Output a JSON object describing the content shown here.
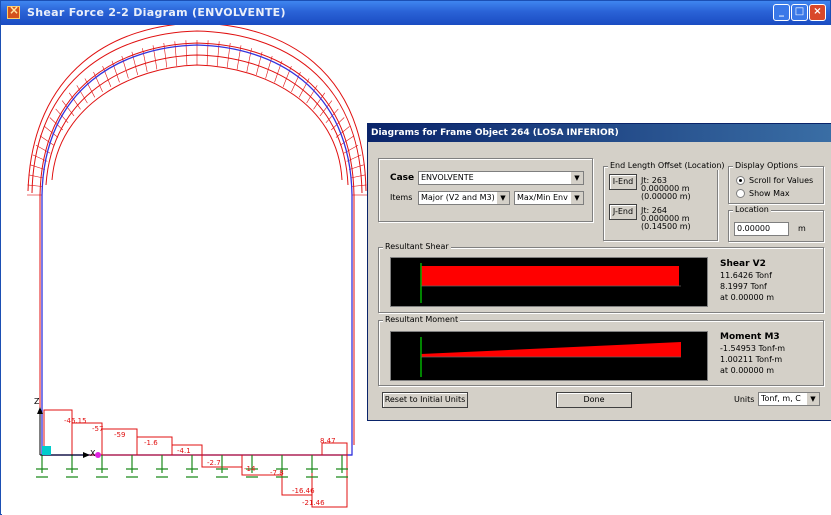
{
  "window": {
    "title": "Shear Force 2-2 Diagram   (ENVOLVENTE)",
    "buttons": [
      "_",
      "□",
      "×"
    ]
  },
  "diagram": {
    "axis_labels": [
      "Z",
      "X"
    ],
    "tick_labels": [
      "-46.15",
      "-57",
      "-59",
      "-1.6",
      "-4.1",
      "-2.7",
      "8.47",
      "-14",
      "-7.8",
      "-16.46",
      "-21.46"
    ]
  },
  "dialog": {
    "title": "Diagrams for Frame Object 264  (LOSA INFERIOR)",
    "case_label": "Case",
    "case_value": "ENVOLVENTE",
    "items_label": "Items",
    "items_value": "Major (V2 and M3)",
    "envelope_value": "Max/Min Env",
    "end_offset": {
      "title": "End Length Offset (Location)",
      "i_end_label": "I-End",
      "i_jt": "Jt: 263",
      "i_offset": "0.000000 m",
      "i_location": "(0.00000 m)",
      "j_end_label": "J-End",
      "j_jt": "Jt: 264",
      "j_offset": "0.000000 m",
      "j_location": "(0.14500 m)"
    },
    "display_options": {
      "title": "Display Options",
      "opt1": "Scroll for Values",
      "opt2": "Show Max",
      "selected": "Scroll for Values"
    },
    "location": {
      "title": "Location",
      "value": "0.00000",
      "unit": "m"
    },
    "shear": {
      "group_title": "Resultant Shear",
      "heading": "Shear V2",
      "max": "11.6426 Tonf",
      "min": "8.1997 Tonf",
      "at": "at 0.00000 m"
    },
    "moment": {
      "group_title": "Resultant Moment",
      "heading": "Moment M3",
      "max": "-1.54953 Tonf-m",
      "min": "1.00211 Tonf-m",
      "at": "at 0.00000 m"
    },
    "reset_label": "Reset to Initial Units",
    "done_label": "Done",
    "units_label": "Units",
    "units_value": "Tonf, m, C"
  },
  "colors": {
    "titlebar": "#2a62d6",
    "diagram_red": "#e01010",
    "frame_blue": "#3333dd",
    "support_green": "#1a8a1a",
    "plot_fill": "#ff0000",
    "plot_line": "#00b000"
  }
}
